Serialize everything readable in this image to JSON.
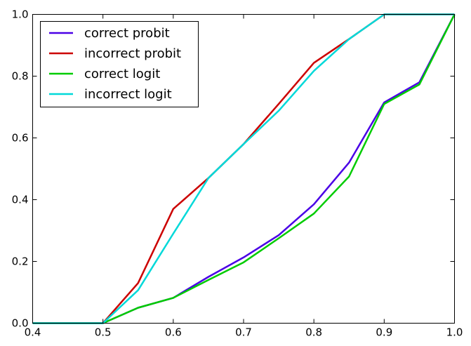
{
  "chart_data": {
    "type": "line",
    "title": "",
    "xlabel": "",
    "ylabel": "",
    "xlim": [
      0.4,
      1.0
    ],
    "ylim": [
      0.0,
      1.0
    ],
    "grid": false,
    "legend_position": "top-left",
    "x_ticks": [
      {
        "value": 0.4,
        "label": "0.4"
      },
      {
        "value": 0.5,
        "label": "0.5"
      },
      {
        "value": 0.6,
        "label": "0.6"
      },
      {
        "value": 0.7,
        "label": "0.7"
      },
      {
        "value": 0.8,
        "label": "0.8"
      },
      {
        "value": 0.9,
        "label": "0.9"
      },
      {
        "value": 1.0,
        "label": "1.0"
      }
    ],
    "y_ticks": [
      {
        "value": 0.0,
        "label": "0.0"
      },
      {
        "value": 0.2,
        "label": "0.2"
      },
      {
        "value": 0.4,
        "label": "0.4"
      },
      {
        "value": 0.6,
        "label": "0.6"
      },
      {
        "value": 0.8,
        "label": "0.8"
      },
      {
        "value": 1.0,
        "label": "1.0"
      }
    ],
    "x": [
      0.4,
      0.45,
      0.5,
      0.55,
      0.6,
      0.65,
      0.7,
      0.75,
      0.8,
      0.85,
      0.9,
      0.95,
      1.0
    ],
    "series": [
      {
        "name": "correct probit",
        "color": "#4a00e6",
        "values": [
          0.0,
          0.0,
          0.0,
          0.05,
          0.082,
          0.15,
          0.213,
          0.285,
          0.385,
          0.52,
          0.715,
          0.78,
          1.0
        ]
      },
      {
        "name": "incorrect probit",
        "color": "#cc0000",
        "values": [
          0.0,
          0.0,
          0.0,
          0.13,
          0.37,
          0.47,
          0.58,
          0.71,
          0.843,
          0.92,
          1.0,
          1.0,
          1.0
        ]
      },
      {
        "name": "correct logit",
        "color": "#00cc00",
        "values": [
          0.0,
          0.0,
          0.0,
          0.05,
          0.082,
          0.14,
          0.197,
          0.275,
          0.355,
          0.475,
          0.71,
          0.773,
          1.0
        ]
      },
      {
        "name": "incorrect logit",
        "color": "#00d9d9",
        "values": [
          0.0,
          0.0,
          0.0,
          0.107,
          0.29,
          0.47,
          0.58,
          0.688,
          0.817,
          0.92,
          1.0,
          1.0,
          1.0
        ]
      }
    ]
  }
}
